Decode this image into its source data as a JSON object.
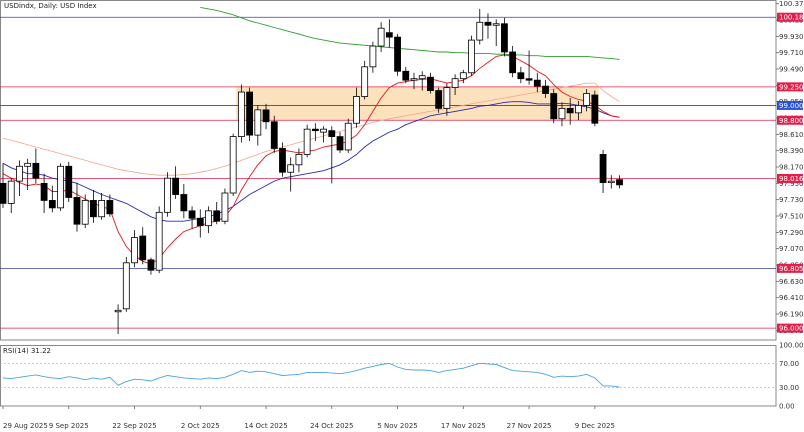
{
  "chart_data": [
    {
      "type": "candlestick",
      "title": "USDindx, Daily:  USD Index",
      "price_axis_ticks": [
        "100.370",
        "100.150",
        "99.930",
        "99.710",
        "99.490",
        "99.270",
        "99.050",
        "98.830",
        "98.610",
        "98.390",
        "98.170",
        "97.950",
        "97.730",
        "97.510",
        "97.290",
        "97.070",
        "96.850",
        "96.630",
        "96.410",
        "96.190",
        "95.970"
      ],
      "date_labels": [
        "29 Aug 2025",
        "9 Sep 2025",
        "22 Sep 2025",
        "2 Oct 2025",
        "14 Oct 2025",
        "24 Oct 2025",
        "5 Nov 2025",
        "17 Nov 2025",
        "27 Nov 2025",
        "9 Dec 2025"
      ],
      "ylim": [
        95.84,
        100.42
      ],
      "zone": {
        "high": 99.25,
        "low": 98.8,
        "color": "#fbdcb2"
      },
      "levels": [
        {
          "label": "100.188",
          "value": 100.188,
          "line": "#3c3ca8",
          "tag": "#e0204a"
        },
        {
          "label": "99.250",
          "value": 99.25,
          "line": "#e0204a",
          "tag": "#e0204a"
        },
        {
          "label": "99.000",
          "value": 99.0,
          "line": "#3c3ca8",
          "tag": "#2a52d8"
        },
        {
          "label": "98.800",
          "value": 98.8,
          "line": "#e0204a",
          "tag": "#e0204a"
        },
        {
          "label": "98.016",
          "value": 98.016,
          "line": "#e0204a",
          "tag": "#e0204a"
        },
        {
          "label": "96.805",
          "value": 96.805,
          "line": "#3c3ca8",
          "tag": "#e0204a"
        },
        {
          "label": "96.000",
          "value": 96.0,
          "line": "#e0204a",
          "tag": "#e0204a"
        }
      ],
      "candles": [
        {
          "o": 97.95,
          "h": 98.22,
          "l": 97.62,
          "c": 97.68
        },
        {
          "o": 97.68,
          "h": 98.02,
          "l": 97.55,
          "c": 97.98
        },
        {
          "o": 97.98,
          "h": 98.26,
          "l": 97.78,
          "c": 98.18
        },
        {
          "o": 98.18,
          "h": 98.28,
          "l": 97.86,
          "c": 98.22
        },
        {
          "o": 98.22,
          "h": 98.42,
          "l": 97.95,
          "c": 98.02
        },
        {
          "o": 97.95,
          "h": 98.08,
          "l": 97.55,
          "c": 97.72
        },
        {
          "o": 97.72,
          "h": 97.92,
          "l": 97.56,
          "c": 97.62
        },
        {
          "o": 97.62,
          "h": 98.22,
          "l": 97.58,
          "c": 98.18
        },
        {
          "o": 98.18,
          "h": 98.24,
          "l": 97.7,
          "c": 97.76
        },
        {
          "o": 97.76,
          "h": 97.96,
          "l": 97.3,
          "c": 97.4
        },
        {
          "o": 97.4,
          "h": 97.8,
          "l": 97.35,
          "c": 97.72
        },
        {
          "o": 97.72,
          "h": 97.86,
          "l": 97.42,
          "c": 97.5
        },
        {
          "o": 97.5,
          "h": 97.82,
          "l": 97.46,
          "c": 97.72
        },
        {
          "o": 97.72,
          "h": 97.8,
          "l": 97.5,
          "c": 97.54
        },
        {
          "o": 96.22,
          "h": 96.32,
          "l": 95.92,
          "c": 96.24
        },
        {
          "o": 96.26,
          "h": 96.96,
          "l": 96.22,
          "c": 96.88
        },
        {
          "o": 96.88,
          "h": 97.32,
          "l": 96.82,
          "c": 97.22
        },
        {
          "o": 97.24,
          "h": 97.36,
          "l": 96.86,
          "c": 96.92
        },
        {
          "o": 96.92,
          "h": 96.95,
          "l": 96.72,
          "c": 96.78
        },
        {
          "o": 96.78,
          "h": 97.64,
          "l": 96.74,
          "c": 97.56
        },
        {
          "o": 97.56,
          "h": 98.1,
          "l": 97.5,
          "c": 98.02
        },
        {
          "o": 98.02,
          "h": 98.18,
          "l": 97.74,
          "c": 97.8
        },
        {
          "o": 97.8,
          "h": 97.94,
          "l": 97.48,
          "c": 97.58
        },
        {
          "o": 97.58,
          "h": 97.64,
          "l": 97.34,
          "c": 97.48
        },
        {
          "o": 97.48,
          "h": 97.6,
          "l": 97.22,
          "c": 97.38
        },
        {
          "o": 97.38,
          "h": 97.64,
          "l": 97.28,
          "c": 97.58
        },
        {
          "o": 97.58,
          "h": 97.7,
          "l": 97.4,
          "c": 97.44
        },
        {
          "o": 97.44,
          "h": 97.88,
          "l": 97.4,
          "c": 97.82
        },
        {
          "o": 97.82,
          "h": 98.62,
          "l": 97.78,
          "c": 98.58
        },
        {
          "o": 98.58,
          "h": 99.28,
          "l": 98.5,
          "c": 99.18
        },
        {
          "o": 99.18,
          "h": 99.24,
          "l": 98.52,
          "c": 98.6
        },
        {
          "o": 98.6,
          "h": 99.0,
          "l": 98.46,
          "c": 98.94
        },
        {
          "o": 98.94,
          "h": 99.02,
          "l": 98.68,
          "c": 98.78
        },
        {
          "o": 98.78,
          "h": 98.86,
          "l": 98.36,
          "c": 98.42
        },
        {
          "o": 98.42,
          "h": 98.5,
          "l": 98.04,
          "c": 98.1
        },
        {
          "o": 98.1,
          "h": 98.3,
          "l": 97.84,
          "c": 98.2
        },
        {
          "o": 98.2,
          "h": 98.42,
          "l": 98.1,
          "c": 98.34
        },
        {
          "o": 98.34,
          "h": 98.74,
          "l": 98.3,
          "c": 98.68
        },
        {
          "o": 98.68,
          "h": 98.76,
          "l": 98.52,
          "c": 98.66
        },
        {
          "o": 98.64,
          "h": 98.72,
          "l": 98.5,
          "c": 98.68
        },
        {
          "o": 98.66,
          "h": 98.72,
          "l": 97.95,
          "c": 98.58
        },
        {
          "o": 98.58,
          "h": 98.64,
          "l": 98.36,
          "c": 98.4
        },
        {
          "o": 98.4,
          "h": 98.82,
          "l": 98.36,
          "c": 98.76
        },
        {
          "o": 98.76,
          "h": 99.24,
          "l": 98.7,
          "c": 99.12
        },
        {
          "o": 99.12,
          "h": 99.6,
          "l": 99.08,
          "c": 99.52
        },
        {
          "o": 99.52,
          "h": 99.86,
          "l": 99.44,
          "c": 99.8
        },
        {
          "o": 99.8,
          "h": 100.12,
          "l": 99.72,
          "c": 100.04
        },
        {
          "o": 99.98,
          "h": 100.16,
          "l": 99.78,
          "c": 99.92
        },
        {
          "o": 99.92,
          "h": 99.96,
          "l": 99.4,
          "c": 99.46
        },
        {
          "o": 99.46,
          "h": 99.52,
          "l": 99.3,
          "c": 99.34
        },
        {
          "o": 99.34,
          "h": 99.44,
          "l": 99.22,
          "c": 99.36
        },
        {
          "o": 99.36,
          "h": 99.46,
          "l": 99.2,
          "c": 99.4
        },
        {
          "o": 99.38,
          "h": 99.44,
          "l": 99.16,
          "c": 99.2
        },
        {
          "o": 99.2,
          "h": 99.24,
          "l": 98.9,
          "c": 98.96
        },
        {
          "o": 98.96,
          "h": 99.3,
          "l": 98.86,
          "c": 99.24
        },
        {
          "o": 99.24,
          "h": 99.42,
          "l": 99.14,
          "c": 99.36
        },
        {
          "o": 99.36,
          "h": 99.48,
          "l": 99.3,
          "c": 99.44
        },
        {
          "o": 99.44,
          "h": 99.94,
          "l": 99.4,
          "c": 99.88
        },
        {
          "o": 99.88,
          "h": 100.3,
          "l": 99.82,
          "c": 100.12
        },
        {
          "o": 100.12,
          "h": 100.24,
          "l": 99.9,
          "c": 100.08
        },
        {
          "o": 100.08,
          "h": 100.16,
          "l": 99.8,
          "c": 100.1
        },
        {
          "o": 100.1,
          "h": 100.18,
          "l": 99.66,
          "c": 99.72
        },
        {
          "o": 99.72,
          "h": 99.8,
          "l": 99.38,
          "c": 99.44
        },
        {
          "o": 99.44,
          "h": 99.52,
          "l": 99.3,
          "c": 99.36
        },
        {
          "o": 99.36,
          "h": 99.74,
          "l": 99.28,
          "c": 99.34
        },
        {
          "o": 99.34,
          "h": 99.44,
          "l": 99.18,
          "c": 99.26
        },
        {
          "o": 99.26,
          "h": 99.34,
          "l": 99.1,
          "c": 99.16
        },
        {
          "o": 99.16,
          "h": 99.22,
          "l": 98.76,
          "c": 98.82
        },
        {
          "o": 98.82,
          "h": 99.04,
          "l": 98.72,
          "c": 98.96
        },
        {
          "o": 98.96,
          "h": 99.1,
          "l": 98.74,
          "c": 98.9
        },
        {
          "o": 98.9,
          "h": 99.06,
          "l": 98.8,
          "c": 99.0
        },
        {
          "o": 99.0,
          "h": 99.22,
          "l": 98.92,
          "c": 99.16
        },
        {
          "o": 99.14,
          "h": 99.2,
          "l": 98.72,
          "c": 98.76
        },
        {
          "o": 98.34,
          "h": 98.4,
          "l": 97.82,
          "c": 97.96
        },
        {
          "o": 97.96,
          "h": 98.06,
          "l": 97.88,
          "c": 97.98
        },
        {
          "o": 98.0,
          "h": 98.06,
          "l": 97.88,
          "c": 97.93
        }
      ],
      "ma_slow": [
        98.56,
        98.53,
        98.5,
        98.47,
        98.44,
        98.41,
        98.38,
        98.35,
        98.32,
        98.29,
        98.26,
        98.23,
        98.2,
        98.17,
        98.14,
        98.12,
        98.1,
        98.08,
        98.07,
        98.06,
        98.06,
        98.06,
        98.07,
        98.08,
        98.1,
        98.12,
        98.15,
        98.18,
        98.22,
        98.26,
        98.3,
        98.34,
        98.38,
        98.41,
        98.44,
        98.47,
        98.5,
        98.53,
        98.56,
        98.59,
        98.62,
        98.65,
        98.68,
        98.71,
        98.74,
        98.77,
        98.8,
        98.82,
        98.84,
        98.86,
        98.88,
        98.9,
        98.92,
        98.94,
        98.96,
        98.98,
        99.0,
        99.02,
        99.04,
        99.06,
        99.08,
        99.1,
        99.12,
        99.14,
        99.16,
        99.18,
        99.2,
        99.22,
        99.24,
        99.26,
        99.28,
        99.3,
        99.3,
        99.2,
        99.12,
        99.05
      ],
      "ma_mid": [
        98.22,
        98.16,
        98.12,
        98.08,
        98.08,
        98.06,
        98.02,
        98.0,
        97.98,
        97.95,
        97.9,
        97.85,
        97.8,
        97.76,
        97.72,
        97.68,
        97.62,
        97.56,
        97.5,
        97.46,
        97.44,
        97.44,
        97.44,
        97.46,
        97.48,
        97.5,
        97.54,
        97.58,
        97.64,
        97.72,
        97.8,
        97.86,
        97.92,
        97.98,
        98.02,
        98.04,
        98.06,
        98.08,
        98.1,
        98.12,
        98.16,
        98.2,
        98.26,
        98.34,
        98.44,
        98.52,
        98.58,
        98.64,
        98.68,
        98.74,
        98.78,
        98.82,
        98.86,
        98.88,
        98.9,
        98.92,
        98.94,
        98.96,
        98.99,
        99.0,
        99.02,
        99.04,
        99.05,
        99.05,
        99.04,
        99.02,
        99.02,
        99.02,
        99.03,
        99.02,
        99.0,
        98.98,
        98.95,
        98.9,
        98.86,
        98.84
      ],
      "ma_fast": [
        98.08,
        98.02,
        97.96,
        97.92,
        97.94,
        97.92,
        97.84,
        97.84,
        97.86,
        97.8,
        97.74,
        97.68,
        97.64,
        97.6,
        97.3,
        97.1,
        96.98,
        96.9,
        96.86,
        96.94,
        97.08,
        97.2,
        97.3,
        97.34,
        97.38,
        97.42,
        97.44,
        97.5,
        97.64,
        97.86,
        98.04,
        98.2,
        98.32,
        98.38,
        98.4,
        98.38,
        98.36,
        98.38,
        98.4,
        98.44,
        98.46,
        98.48,
        98.52,
        98.6,
        98.74,
        98.92,
        99.1,
        99.24,
        99.3,
        99.32,
        99.34,
        99.35,
        99.36,
        99.33,
        99.3,
        99.32,
        99.34,
        99.4,
        99.5,
        99.58,
        99.66,
        99.68,
        99.66,
        99.6,
        99.54,
        99.46,
        99.4,
        99.28,
        99.18,
        99.12,
        99.08,
        99.06,
        99.0,
        98.92,
        98.86,
        98.84
      ],
      "ma_long": [
        100.32,
        100.3,
        100.28,
        100.25,
        100.22,
        100.18,
        100.14,
        100.11,
        100.08,
        100.05,
        100.02,
        99.99,
        99.96,
        99.93,
        99.9,
        99.88,
        99.86,
        99.84,
        99.83,
        99.82,
        99.81,
        99.8,
        99.79,
        99.78,
        99.77,
        99.76,
        99.75,
        99.74,
        99.73,
        99.72,
        99.72,
        99.71,
        99.71,
        99.7,
        99.7,
        99.7,
        99.69,
        99.69,
        99.68,
        99.68,
        99.67,
        99.67,
        99.66,
        99.66,
        99.66,
        99.66,
        99.66,
        99.66,
        99.65,
        99.64,
        99.63,
        99.62
      ],
      "ma_long_start_index": 24,
      "ma_colors": {
        "slow": "#f2a48c",
        "mid": "#2a2ab0",
        "fast": "#e8141c",
        "long": "#2e9e2e"
      }
    },
    {
      "type": "line",
      "title": "RSI(14) 31.22",
      "ylim": [
        0,
        100
      ],
      "ticks": [
        "100.00",
        "70.00",
        "30.00",
        "0.00"
      ],
      "levels": [
        70,
        30
      ],
      "line_color": "#4aa3df",
      "values": [
        46,
        45,
        47,
        49,
        51,
        48,
        46,
        45,
        48,
        46,
        43,
        46,
        44,
        47,
        34,
        40,
        44,
        43,
        41,
        46,
        50,
        48,
        46,
        45,
        44,
        46,
        45,
        47,
        52,
        58,
        55,
        57,
        56,
        53,
        50,
        51,
        52,
        55,
        55,
        55,
        54,
        53,
        55,
        58,
        62,
        65,
        68,
        70,
        64,
        60,
        59,
        59,
        58,
        55,
        58,
        60,
        62,
        66,
        70,
        69,
        68,
        63,
        58,
        57,
        56,
        55,
        52,
        47,
        49,
        48,
        49,
        52,
        46,
        33,
        33,
        31
      ]
    }
  ]
}
